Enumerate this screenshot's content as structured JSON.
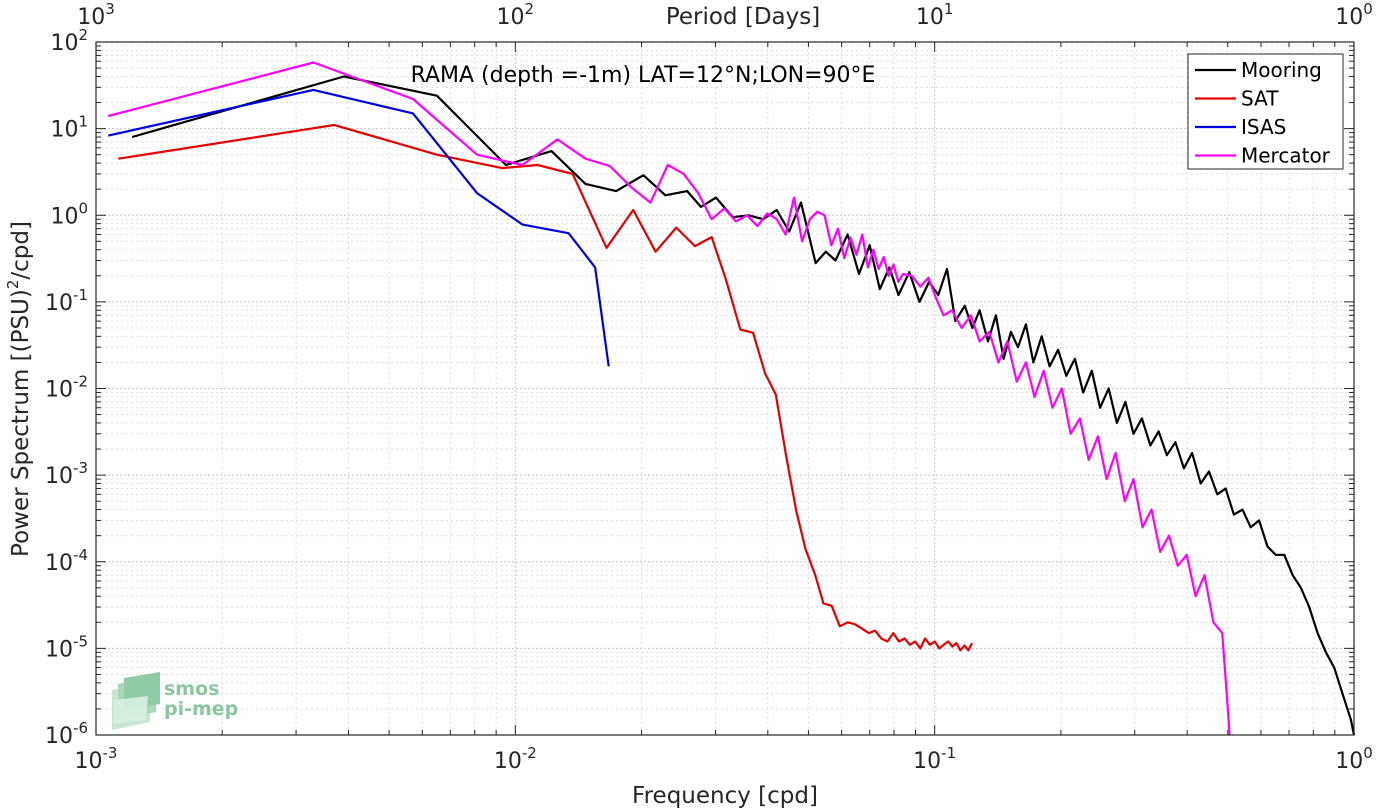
{
  "chart_data": {
    "type": "line",
    "title": "RAMA (depth =-1m) LAT=12°N;LON=90°E",
    "xlabel": "Frequency [cpd]",
    "ylabel": "Power Spectrum [(PSU)^2/cpd]",
    "ylabel_parts": {
      "pre": "Power Spectrum [(PSU)",
      "sup": "2",
      "post": "/cpd]"
    },
    "top_xlabel": "Period [Days]",
    "x_scale": "log",
    "y_scale": "log",
    "xlim": [
      0.001,
      1
    ],
    "ylim": [
      1e-06,
      100
    ],
    "grid": true,
    "legend_position": "top-right",
    "x_ticks": [
      {
        "base": "10",
        "exp": "-3",
        "value": 0.001
      },
      {
        "base": "10",
        "exp": "-2",
        "value": 0.01
      },
      {
        "base": "10",
        "exp": "-1",
        "value": 0.1
      },
      {
        "base": "10",
        "exp": "0",
        "value": 1
      }
    ],
    "top_ticks": [
      {
        "base": "10",
        "exp": "3",
        "value": 1000
      },
      {
        "base": "10",
        "exp": "2",
        "value": 100
      },
      {
        "base": "10",
        "exp": "1",
        "value": 10
      },
      {
        "base": "10",
        "exp": "0",
        "value": 1
      }
    ],
    "y_ticks": [
      {
        "base": "10",
        "exp": "2",
        "value": 100
      },
      {
        "base": "10",
        "exp": "1",
        "value": 10
      },
      {
        "base": "10",
        "exp": "0",
        "value": 1
      },
      {
        "base": "10",
        "exp": "-1",
        "value": 0.1
      },
      {
        "base": "10",
        "exp": "-2",
        "value": 0.01
      },
      {
        "base": "10",
        "exp": "-3",
        "value": 0.001
      },
      {
        "base": "10",
        "exp": "-4",
        "value": 0.0001
      },
      {
        "base": "10",
        "exp": "-5",
        "value": 1e-05
      },
      {
        "base": "10",
        "exp": "-6",
        "value": 1e-06
      }
    ],
    "series": [
      {
        "name": "Mooring",
        "color": "#000000",
        "x": [
          0.00122,
          0.0039,
          0.0065,
          0.0095,
          0.0122,
          0.0147,
          0.0174,
          0.0202,
          0.0228,
          0.0257,
          0.0277,
          0.0301,
          0.033,
          0.036,
          0.039,
          0.042,
          0.045,
          0.048,
          0.052,
          0.055,
          0.058,
          0.062,
          0.066,
          0.07,
          0.074,
          0.078,
          0.082,
          0.087,
          0.092,
          0.097,
          0.102,
          0.107,
          0.112,
          0.118,
          0.123,
          0.128,
          0.134,
          0.14,
          0.146,
          0.152,
          0.158,
          0.165,
          0.172,
          0.18,
          0.188,
          0.197,
          0.206,
          0.216,
          0.226,
          0.237,
          0.248,
          0.26,
          0.272,
          0.285,
          0.298,
          0.312,
          0.327,
          0.342,
          0.358,
          0.375,
          0.393,
          0.411,
          0.431,
          0.451,
          0.472,
          0.494,
          0.517,
          0.542,
          0.567,
          0.594,
          0.622,
          0.651,
          0.682,
          0.714,
          0.747,
          0.782,
          0.819,
          0.857,
          0.897,
          0.939,
          0.983,
          1.0
        ],
        "values": [
          8.0,
          40,
          24,
          3.8,
          5.5,
          2.3,
          1.9,
          2.9,
          1.7,
          1.9,
          1.25,
          1.6,
          0.95,
          1.0,
          0.9,
          1.15,
          0.65,
          1.4,
          0.28,
          0.38,
          0.3,
          0.6,
          0.21,
          0.45,
          0.14,
          0.25,
          0.12,
          0.22,
          0.1,
          0.17,
          0.12,
          0.24,
          0.06,
          0.09,
          0.05,
          0.08,
          0.035,
          0.07,
          0.022,
          0.045,
          0.03,
          0.055,
          0.02,
          0.04,
          0.018,
          0.028,
          0.014,
          0.022,
          0.009,
          0.016,
          0.006,
          0.01,
          0.004,
          0.007,
          0.003,
          0.0045,
          0.0022,
          0.0032,
          0.0017,
          0.0024,
          0.0012,
          0.0018,
          0.0008,
          0.0011,
          0.0006,
          0.0007,
          0.00035,
          0.0004,
          0.00025,
          0.0003,
          0.00015,
          0.00012,
          0.00012,
          7e-05,
          5e-05,
          3e-05,
          1.5e-05,
          9e-06,
          6e-06,
          3e-06,
          1.5e-06,
          1e-06
        ]
      },
      {
        "name": "SAT",
        "color": "#e50000",
        "x": [
          0.00113,
          0.0037,
          0.0065,
          0.0093,
          0.0113,
          0.0137,
          0.0165,
          0.0191,
          0.0216,
          0.0242,
          0.0268,
          0.0294,
          0.0318,
          0.0344,
          0.0369,
          0.0394,
          0.0418,
          0.0443,
          0.0467,
          0.0492,
          0.0518,
          0.0543,
          0.0568,
          0.0594,
          0.062,
          0.0645,
          0.067,
          0.0696,
          0.0721,
          0.0746,
          0.0772,
          0.0797,
          0.0822,
          0.0848,
          0.0873,
          0.0898,
          0.0924,
          0.0949,
          0.0974,
          0.1,
          0.1025,
          0.1051,
          0.1077,
          0.1102,
          0.1127,
          0.1152,
          0.1178,
          0.1203,
          0.1228
        ],
        "values": [
          4.5,
          11,
          5,
          3.5,
          3.8,
          3.0,
          0.42,
          1.15,
          0.38,
          0.72,
          0.44,
          0.56,
          0.18,
          0.048,
          0.044,
          0.015,
          0.0085,
          0.0016,
          0.0004,
          0.00014,
          7.2e-05,
          3.3e-05,
          3.1e-05,
          1.8e-05,
          2e-05,
          1.9e-05,
          1.7e-05,
          1.5e-05,
          1.6e-05,
          1.3e-05,
          1.2e-05,
          1.5e-05,
          1.2e-05,
          1.3e-05,
          1.1e-05,
          1.2e-05,
          1e-05,
          1.3e-05,
          1.1e-05,
          1.2e-05,
          1e-05,
          1.1e-05,
          1.2e-05,
          1.05e-05,
          1.15e-05,
          9.5e-06,
          1.08e-05,
          9.5e-06,
          1.15e-05
        ]
      },
      {
        "name": "ISAS",
        "color": "#0000e5",
        "x": [
          0.00107,
          0.0033,
          0.0057,
          0.0081,
          0.0104,
          0.0134,
          0.0155,
          0.0167
        ],
        "values": [
          8.3,
          28,
          15,
          1.8,
          0.78,
          0.62,
          0.25,
          0.018
        ]
      },
      {
        "name": "Mercator",
        "color": "#ff00ff",
        "x": [
          0.00107,
          0.0033,
          0.0057,
          0.0081,
          0.0104,
          0.0126,
          0.0147,
          0.0168,
          0.0189,
          0.021,
          0.0231,
          0.0252,
          0.0273,
          0.0294,
          0.0315,
          0.0336,
          0.0357,
          0.0378,
          0.0399,
          0.042,
          0.0441,
          0.0462,
          0.0483,
          0.0504,
          0.0525,
          0.0546,
          0.0567,
          0.0588,
          0.0609,
          0.063,
          0.0651,
          0.0672,
          0.0693,
          0.0714,
          0.0735,
          0.0756,
          0.0777,
          0.0798,
          0.0819,
          0.084,
          0.0882,
          0.0924,
          0.0966,
          0.1008,
          0.105,
          0.11,
          0.116,
          0.122,
          0.128,
          0.135,
          0.142,
          0.149,
          0.157,
          0.165,
          0.173,
          0.182,
          0.191,
          0.201,
          0.211,
          0.222,
          0.233,
          0.245,
          0.257,
          0.27,
          0.284,
          0.298,
          0.313,
          0.329,
          0.345,
          0.362,
          0.38,
          0.399,
          0.419,
          0.44,
          0.462,
          0.485,
          0.495,
          0.5,
          0.505
        ],
        "values": [
          14,
          58,
          22,
          5.0,
          3.8,
          7.5,
          4.5,
          3.7,
          2.1,
          1.4,
          3.8,
          3.0,
          1.8,
          0.9,
          1.2,
          0.85,
          1.0,
          0.75,
          1.05,
          0.9,
          0.6,
          1.6,
          0.5,
          0.9,
          1.1,
          1.0,
          0.45,
          0.7,
          0.32,
          0.55,
          0.35,
          0.6,
          0.25,
          0.4,
          0.24,
          0.33,
          0.2,
          0.27,
          0.17,
          0.21,
          0.2,
          0.15,
          0.19,
          0.11,
          0.07,
          0.08,
          0.05,
          0.07,
          0.035,
          0.045,
          0.02,
          0.035,
          0.012,
          0.02,
          0.008,
          0.016,
          0.006,
          0.01,
          0.003,
          0.0045,
          0.0015,
          0.0028,
          0.0009,
          0.0018,
          0.0005,
          0.0009,
          0.00025,
          0.0004,
          0.00013,
          0.0002,
          9e-05,
          0.00012,
          4e-05,
          7e-05,
          2e-05,
          1.5e-05,
          4e-06,
          2e-06,
          1e-06
        ]
      }
    ]
  },
  "logo": {
    "line1": "smos",
    "line2": "pi-mep"
  }
}
